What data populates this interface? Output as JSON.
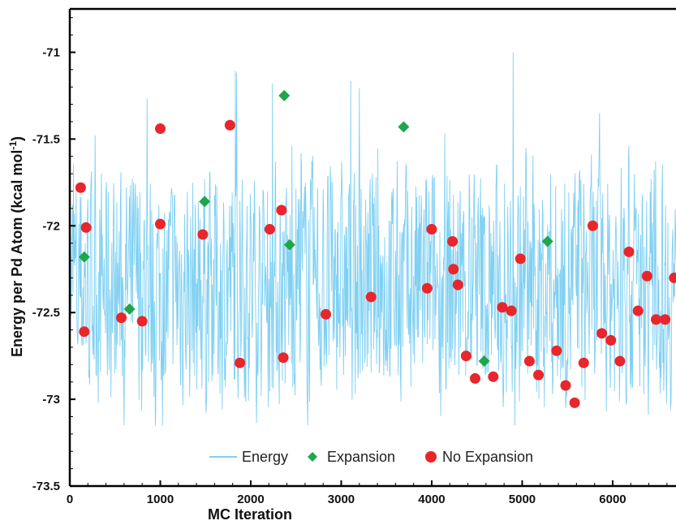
{
  "chart_data": {
    "type": "scatter",
    "title": "",
    "xlabel": "MC Iteration",
    "ylabel_main": "Energy per Pd Atom (kcal mol",
    "ylabel_sup": "-1",
    "ylabel_end": ")",
    "xlim": [
      0,
      6700
    ],
    "ylim": [
      -73.5,
      -70.75
    ],
    "x_ticks": [
      0,
      1000,
      2000,
      3000,
      4000,
      5000,
      6000
    ],
    "y_ticks": [
      -73.5,
      -73,
      -72.5,
      -72,
      -71.5,
      -71
    ],
    "x_tick_labels": [
      "0",
      "1000",
      "2000",
      "3000",
      "4000",
      "5000",
      "6000"
    ],
    "y_tick_labels": [
      "-73.5",
      "-73",
      "-72.5",
      "-72",
      "-71.5",
      "-71"
    ],
    "grid": false,
    "legend_position": "bottom-center",
    "series": [
      {
        "name": "Energy",
        "kind": "line",
        "color": "#7fd0f2",
        "note": "noisy trace fluctuating between about -73.15 and -70.85 over 0-6700 iterations",
        "x_range": [
          0,
          6700
        ],
        "y_min": -73.15,
        "y_max": -70.85
      },
      {
        "name": "Expansion",
        "kind": "scatter",
        "marker": "diamond",
        "color": "#1fa64a",
        "points": [
          [
            160,
            -72.18
          ],
          [
            660,
            -72.48
          ],
          [
            1490,
            -71.86
          ],
          [
            2370,
            -71.25
          ],
          [
            2430,
            -72.11
          ],
          [
            3690,
            -71.43
          ],
          [
            4580,
            -72.78
          ],
          [
            5280,
            -72.09
          ]
        ]
      },
      {
        "name": "No Expansion",
        "kind": "scatter",
        "marker": "circle",
        "color": "#e8262b",
        "points": [
          [
            120,
            -71.78
          ],
          [
            180,
            -72.01
          ],
          [
            160,
            -72.61
          ],
          [
            570,
            -72.53
          ],
          [
            800,
            -72.55
          ],
          [
            1000,
            -71.44
          ],
          [
            1000,
            -71.99
          ],
          [
            1470,
            -72.05
          ],
          [
            1770,
            -71.42
          ],
          [
            1880,
            -72.79
          ],
          [
            2210,
            -72.02
          ],
          [
            2340,
            -71.91
          ],
          [
            2360,
            -72.76
          ],
          [
            2830,
            -72.51
          ],
          [
            3330,
            -72.41
          ],
          [
            3950,
            -72.36
          ],
          [
            4000,
            -72.02
          ],
          [
            4230,
            -72.09
          ],
          [
            4240,
            -72.25
          ],
          [
            4290,
            -72.34
          ],
          [
            4380,
            -72.75
          ],
          [
            4480,
            -72.88
          ],
          [
            4680,
            -72.87
          ],
          [
            4780,
            -72.47
          ],
          [
            4880,
            -72.49
          ],
          [
            4980,
            -72.19
          ],
          [
            5080,
            -72.78
          ],
          [
            5180,
            -72.86
          ],
          [
            5380,
            -72.72
          ],
          [
            5480,
            -72.92
          ],
          [
            5580,
            -73.02
          ],
          [
            5680,
            -72.79
          ],
          [
            5780,
            -72.0
          ],
          [
            5880,
            -72.62
          ],
          [
            5980,
            -72.66
          ],
          [
            6080,
            -72.78
          ],
          [
            6180,
            -72.15
          ],
          [
            6280,
            -72.49
          ],
          [
            6380,
            -72.29
          ],
          [
            6480,
            -72.54
          ],
          [
            6580,
            -72.54
          ],
          [
            6680,
            -72.3
          ]
        ]
      }
    ]
  }
}
